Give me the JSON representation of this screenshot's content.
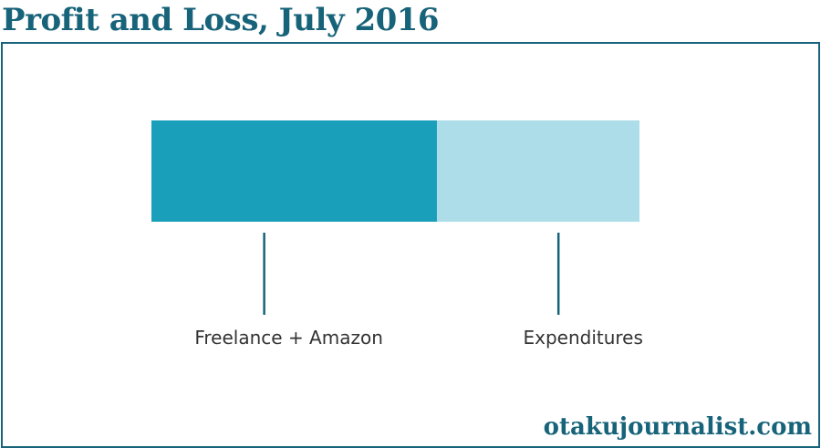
{
  "title": "Profit and Loss, July 2016",
  "watermark": "otakujournalist.com",
  "chart_data": {
    "type": "bar",
    "orientation": "horizontal-stacked",
    "categories": [
      "Freelance + Amazon",
      "Expenditures"
    ],
    "values": [
      58.5,
      41.5
    ],
    "unit": "percent",
    "colors": [
      "#1a9fbb",
      "#acdde9"
    ],
    "leader_color": "#17637a",
    "grid": false,
    "legend": "none",
    "title": "Profit and Loss, July 2016"
  }
}
